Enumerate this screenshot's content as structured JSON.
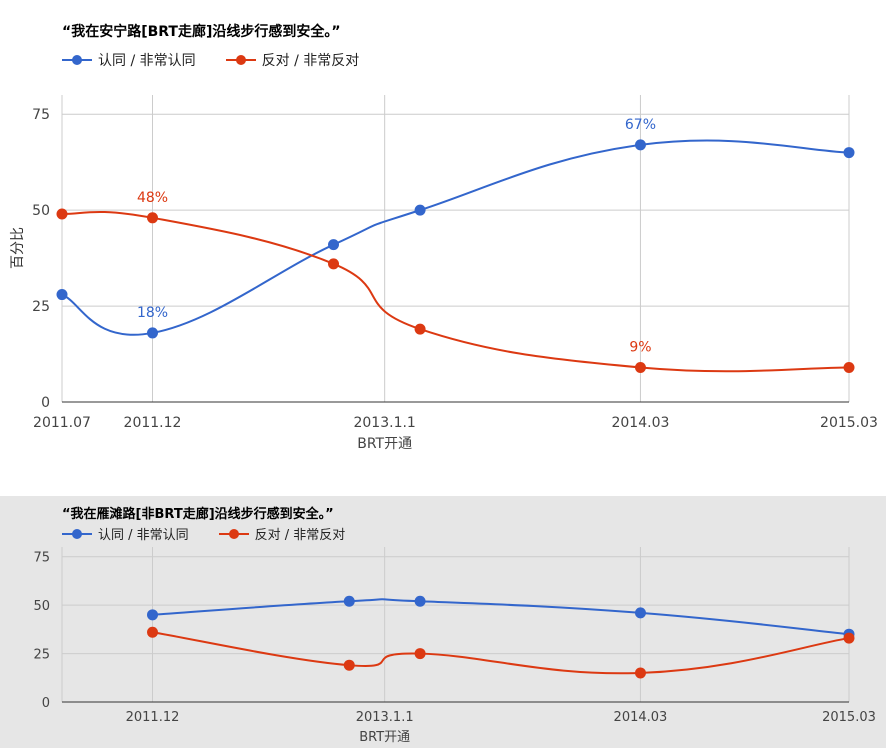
{
  "colors": {
    "agree": "#3366cc",
    "disagree": "#dc3912",
    "grid": "#cccccc",
    "axis": "#333333",
    "tick_text": "#444444"
  },
  "chart_data": [
    {
      "type": "line",
      "title": "“我在安宁路[BRT走廊]沿线步行感到安全。”",
      "xlabel": "BRT开通",
      "ylabel": "百分比",
      "ylim": [
        0,
        80
      ],
      "yticks": [
        0,
        25,
        50,
        75
      ],
      "xlim": [
        0,
        100
      ],
      "xticks": [
        {
          "label": "2011.07",
          "x": 0
        },
        {
          "label": "2011.12",
          "x": 11.5
        },
        {
          "label": "2013.1.1",
          "x": 41
        },
        {
          "label": "2014.03",
          "x": 73.5
        },
        {
          "label": "2015.03",
          "x": 100
        }
      ],
      "grid": true,
      "legend": "top-left",
      "series": [
        {
          "name": "认同 / 非常认同",
          "color": "#3366cc",
          "points": [
            [
              0,
              28
            ],
            [
              11.5,
              18
            ],
            [
              34.5,
              41
            ],
            [
              45.5,
              50
            ],
            [
              73.5,
              67
            ],
            [
              100,
              65
            ]
          ],
          "labels": [
            {
              "index": 1,
              "text": "18%",
              "pos": "above"
            },
            {
              "index": 4,
              "text": "67%",
              "pos": "above"
            }
          ]
        },
        {
          "name": "反对 / 非常反对",
          "color": "#dc3912",
          "points": [
            [
              0,
              49
            ],
            [
              11.5,
              48
            ],
            [
              34.5,
              36
            ],
            [
              45.5,
              19
            ],
            [
              73.5,
              9
            ],
            [
              100,
              9
            ]
          ],
          "labels": [
            {
              "index": 1,
              "text": "48%",
              "pos": "above"
            },
            {
              "index": 4,
              "text": "9%",
              "pos": "above"
            }
          ]
        }
      ]
    },
    {
      "type": "line",
      "title": "“我在雁滩路[非BRT走廊]沿线步行感到安全。”",
      "xlabel": "BRT开通",
      "ylabel": "",
      "ylim": [
        0,
        80
      ],
      "yticks": [
        0,
        25,
        50,
        75
      ],
      "xlim": [
        0,
        100
      ],
      "xticks": [
        {
          "label": "2011.12",
          "x": 11.5
        },
        {
          "label": "2013.1.1",
          "x": 41
        },
        {
          "label": "2014.03",
          "x": 73.5
        },
        {
          "label": "2015.03",
          "x": 100
        }
      ],
      "grid": true,
      "legend": "top-left",
      "series": [
        {
          "name": "认同 / 非常认同",
          "color": "#3366cc",
          "points": [
            [
              11.5,
              45
            ],
            [
              36.5,
              52
            ],
            [
              45.5,
              52
            ],
            [
              73.5,
              46
            ],
            [
              100,
              35
            ]
          ],
          "labels": []
        },
        {
          "name": "反对 / 非常反对",
          "color": "#dc3912",
          "points": [
            [
              11.5,
              36
            ],
            [
              36.5,
              19
            ],
            [
              45.5,
              25
            ],
            [
              73.5,
              15
            ],
            [
              100,
              33
            ]
          ],
          "labels": []
        }
      ]
    }
  ]
}
